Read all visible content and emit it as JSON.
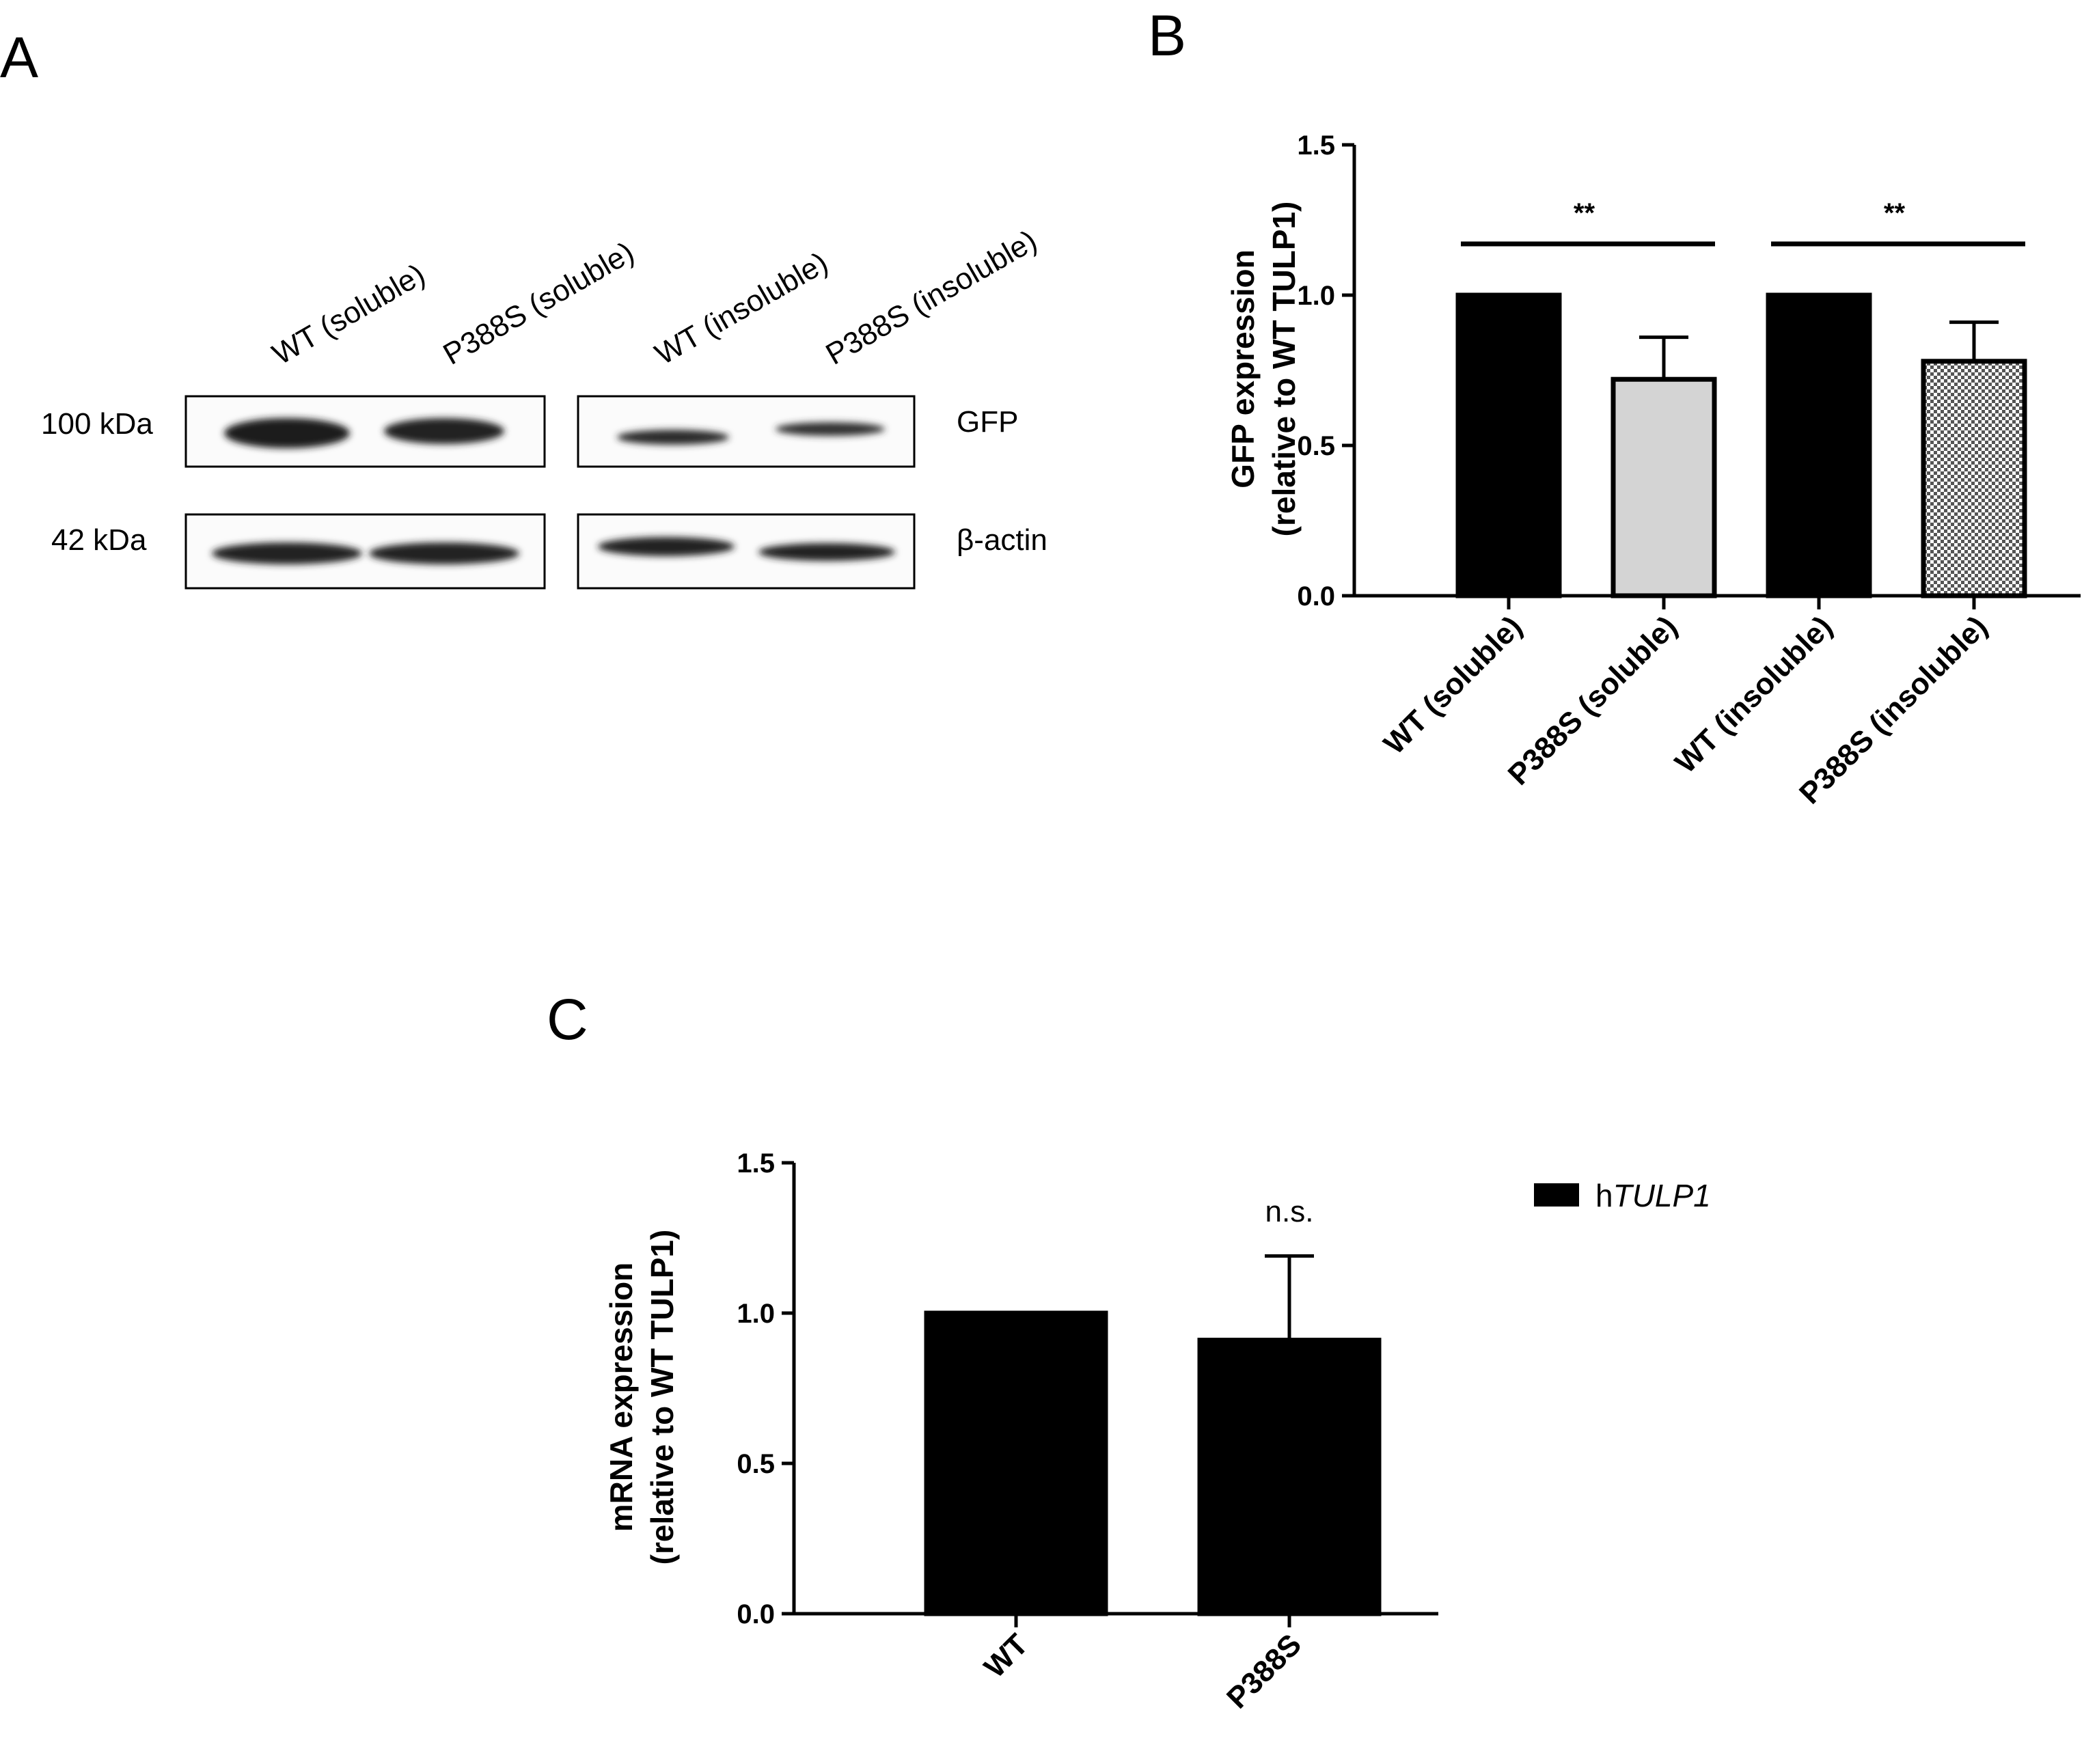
{
  "panels": {
    "a": {
      "letter": "A"
    },
    "b": {
      "letter": "B"
    },
    "c": {
      "letter": "C"
    }
  },
  "blot": {
    "lanes": [
      "WT (soluble)",
      "P388S (soluble)",
      "WT (insoluble)",
      "P388S (insoluble)"
    ],
    "rows": [
      {
        "marker": "100 kDa",
        "protein": "GFP",
        "band_intensity": [
          1.0,
          0.9,
          0.6,
          0.55
        ]
      },
      {
        "marker": "42 kDa",
        "protein": "β-actin",
        "band_intensity": [
          0.85,
          0.85,
          0.85,
          0.85
        ]
      }
    ]
  },
  "chart_data": [
    {
      "panel": "B",
      "type": "bar",
      "categories": [
        "WT (soluble)",
        "P388S (soluble)",
        "WT (insoluble)",
        "P388S (insoluble)"
      ],
      "values": [
        1.0,
        0.72,
        1.0,
        0.78
      ],
      "error_upper": [
        0.0,
        0.14,
        0.0,
        0.13
      ],
      "bar_fills": [
        "#000000",
        "#d4d4d4",
        "#000000",
        "checkered"
      ],
      "ylabel": "GFP expression",
      "ylabel_line2": "(relative to WT TULP1)",
      "ylim": [
        0,
        1.5
      ],
      "yticks": [
        "0.0",
        "0.5",
        "1.0",
        "1.5"
      ],
      "significance": [
        {
          "from": "WT (soluble)",
          "to": "P388S (soluble)",
          "label": "**"
        },
        {
          "from": "WT (insoluble)",
          "to": "P388S (insoluble)",
          "label": "**"
        }
      ],
      "grid": false
    },
    {
      "panel": "C",
      "type": "bar",
      "categories": [
        "WT",
        "P388S"
      ],
      "values": [
        1.0,
        0.91
      ],
      "error_upper": [
        0.0,
        0.28
      ],
      "bar_fills": [
        "#000000",
        "#000000"
      ],
      "ylabel": "mRNA expression",
      "ylabel_line2": "(relative to WT TULP1)",
      "ylim": [
        0,
        1.5
      ],
      "yticks": [
        "0.0",
        "0.5",
        "1.0",
        "1.5"
      ],
      "significance": [
        {
          "from": "P388S",
          "to": "P388S",
          "label": "n.s."
        }
      ],
      "legend": {
        "prefix": "h",
        "name": "TULP1",
        "placement": "right"
      },
      "grid": false
    }
  ]
}
